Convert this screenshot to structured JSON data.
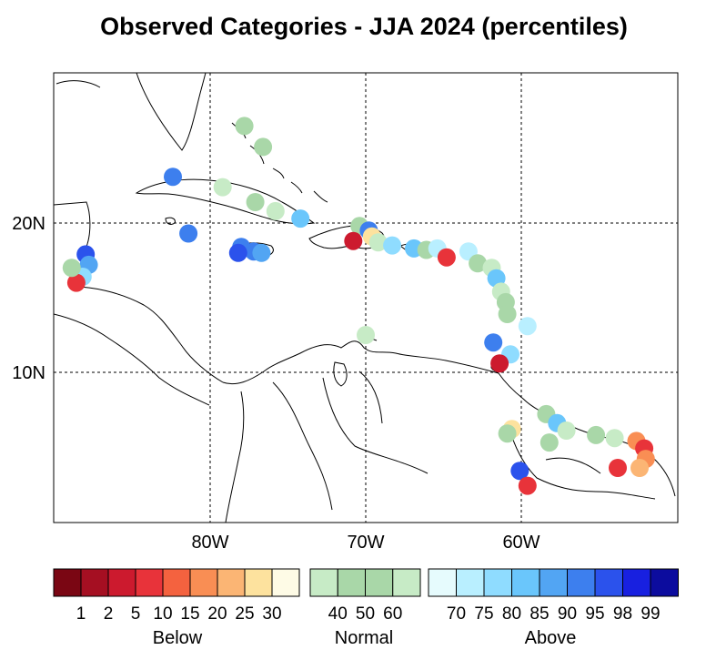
{
  "title": "Observed Categories - JJA 2024 (percentiles)",
  "axes": {
    "lon_ticks": [
      "80W",
      "70W",
      "60W"
    ],
    "lat_ticks": [
      "20N",
      "10N"
    ]
  },
  "colorbar": {
    "groups": [
      "Below",
      "Normal",
      "Above"
    ],
    "below_colors": [
      "#7a0613",
      "#a50f22",
      "#cc1a2e",
      "#e8333a",
      "#f4623f",
      "#f98e54",
      "#fbb574",
      "#fde29e",
      "#fefbe6"
    ],
    "normal_colors": [
      "#c7ebc6",
      "#a9d7a8",
      "#a9d7a8",
      "#c7ebc6"
    ],
    "above_colors": [
      "#e6fbfd",
      "#b9efff",
      "#8fdcff",
      "#6ac6fb",
      "#52a5f3",
      "#3d7fee",
      "#2b52ec",
      "#1820e0",
      "#0c0c9e"
    ],
    "below_labels": [
      "1",
      "2",
      "5",
      "10",
      "15",
      "20",
      "25",
      "30"
    ],
    "normal_labels": [
      "40",
      "50",
      "60"
    ],
    "above_labels": [
      "70",
      "75",
      "80",
      "85",
      "90",
      "95",
      "98",
      "99"
    ]
  },
  "stations": [
    {
      "lon": -77.8,
      "lat": 26.5,
      "color": "#a9d7a8"
    },
    {
      "lon": -76.6,
      "lat": 25.1,
      "color": "#a9d7a8"
    },
    {
      "lon": -82.4,
      "lat": 23.1,
      "color": "#3d7fee"
    },
    {
      "lon": -79.2,
      "lat": 22.4,
      "color": "#c7ebc6"
    },
    {
      "lon": -77.1,
      "lat": 21.4,
      "color": "#a9d7a8"
    },
    {
      "lon": -75.8,
      "lat": 20.8,
      "color": "#c7ebc6"
    },
    {
      "lon": -74.2,
      "lat": 20.3,
      "color": "#6ac6fb"
    },
    {
      "lon": -81.4,
      "lat": 19.3,
      "color": "#3d7fee"
    },
    {
      "lon": -78.0,
      "lat": 18.4,
      "color": "#3d7fee"
    },
    {
      "lon": -77.2,
      "lat": 18.1,
      "color": "#3d7fee"
    },
    {
      "lon": -76.7,
      "lat": 18.0,
      "color": "#52a5f3"
    },
    {
      "lon": -78.2,
      "lat": 18.0,
      "color": "#2b52ec"
    },
    {
      "lon": -70.4,
      "lat": 19.8,
      "color": "#a9d7a8"
    },
    {
      "lon": -69.8,
      "lat": 19.5,
      "color": "#3d7fee"
    },
    {
      "lon": -69.6,
      "lat": 19.1,
      "color": "#fde29e"
    },
    {
      "lon": -70.8,
      "lat": 18.8,
      "color": "#cc1a2e"
    },
    {
      "lon": -69.2,
      "lat": 18.7,
      "color": "#c7ebc6"
    },
    {
      "lon": -68.3,
      "lat": 18.5,
      "color": "#8fdcff"
    },
    {
      "lon": -66.9,
      "lat": 18.3,
      "color": "#6ac6fb"
    },
    {
      "lon": -66.1,
      "lat": 18.2,
      "color": "#a9d7a8"
    },
    {
      "lon": -65.4,
      "lat": 18.3,
      "color": "#b9efff"
    },
    {
      "lon": -64.8,
      "lat": 17.7,
      "color": "#e8333a"
    },
    {
      "lon": -63.4,
      "lat": 18.1,
      "color": "#b9efff"
    },
    {
      "lon": -62.8,
      "lat": 17.3,
      "color": "#a9d7a8"
    },
    {
      "lon": -61.9,
      "lat": 17.0,
      "color": "#c7ebc6"
    },
    {
      "lon": -61.6,
      "lat": 16.3,
      "color": "#6ac6fb"
    },
    {
      "lon": -61.3,
      "lat": 15.4,
      "color": "#c7ebc6"
    },
    {
      "lon": -61.0,
      "lat": 14.7,
      "color": "#a9d7a8"
    },
    {
      "lon": -60.9,
      "lat": 13.9,
      "color": "#a9d7a8"
    },
    {
      "lon": -59.6,
      "lat": 13.1,
      "color": "#b9efff"
    },
    {
      "lon": -61.8,
      "lat": 12.0,
      "color": "#3d7fee"
    },
    {
      "lon": -60.7,
      "lat": 11.2,
      "color": "#8fdcff"
    },
    {
      "lon": -61.4,
      "lat": 10.6,
      "color": "#cc1a2e"
    },
    {
      "lon": -70.0,
      "lat": 12.5,
      "color": "#c7ebc6"
    },
    {
      "lon": -88.0,
      "lat": 17.9,
      "color": "#2b52ec"
    },
    {
      "lon": -87.8,
      "lat": 17.2,
      "color": "#52a5f3"
    },
    {
      "lon": -88.2,
      "lat": 16.4,
      "color": "#8fdcff"
    },
    {
      "lon": -88.6,
      "lat": 16.0,
      "color": "#e8333a"
    },
    {
      "lon": -88.9,
      "lat": 17.0,
      "color": "#a9d7a8"
    },
    {
      "lon": -58.4,
      "lat": 7.2,
      "color": "#a9d7a8"
    },
    {
      "lon": -57.7,
      "lat": 6.6,
      "color": "#6ac6fb"
    },
    {
      "lon": -57.1,
      "lat": 6.1,
      "color": "#c7ebc6"
    },
    {
      "lon": -58.2,
      "lat": 5.3,
      "color": "#a9d7a8"
    },
    {
      "lon": -55.2,
      "lat": 5.8,
      "color": "#a9d7a8"
    },
    {
      "lon": -54.0,
      "lat": 5.6,
      "color": "#c7ebc6"
    },
    {
      "lon": -52.6,
      "lat": 5.4,
      "color": "#f98e54"
    },
    {
      "lon": -52.1,
      "lat": 4.9,
      "color": "#e8333a"
    },
    {
      "lon": -52.0,
      "lat": 4.2,
      "color": "#f98e54"
    },
    {
      "lon": -52.4,
      "lat": 3.6,
      "color": "#fbb574"
    },
    {
      "lon": -53.8,
      "lat": 3.6,
      "color": "#e8333a"
    },
    {
      "lon": -60.6,
      "lat": 6.2,
      "color": "#fde29e"
    },
    {
      "lon": -60.9,
      "lat": 5.9,
      "color": "#a9d7a8"
    },
    {
      "lon": -60.1,
      "lat": 3.4,
      "color": "#2b52ec"
    },
    {
      "lon": -59.6,
      "lat": 2.4,
      "color": "#e8333a"
    }
  ]
}
